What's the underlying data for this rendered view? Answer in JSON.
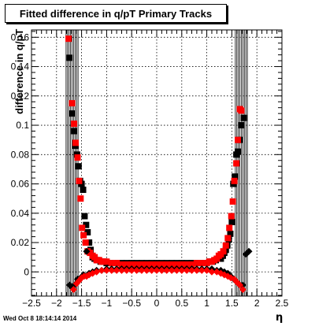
{
  "footer": {
    "timestamp": "Wed Oct  8 18:14:14 2014"
  },
  "chart_data": {
    "type": "scatter",
    "title": "Fitted difference in q/pT  Primary Tracks",
    "xlabel": "η",
    "ylabel": "difference in q/pT",
    "xlim": [
      -2.5,
      2.5
    ],
    "ylim": [
      -0.0165,
      0.165
    ],
    "grid": true,
    "x_ticks": [
      -2.5,
      -2,
      -1.5,
      -1,
      -0.5,
      0,
      0.5,
      1,
      1.5,
      2,
      2.5
    ],
    "x_tick_labels": [
      "−2.5",
      "−2",
      "−1.5",
      "−1",
      "−0.5",
      "0",
      "0.5",
      "1",
      "1.5",
      "2",
      "2.5"
    ],
    "y_ticks": [
      0,
      0.02,
      0.04,
      0.06,
      0.08,
      0.1,
      0.12,
      0.14,
      0.16
    ],
    "y_tick_labels": [
      "0",
      "0.02",
      "0.04",
      "0.06",
      "0.08",
      "0.1",
      "0.12",
      "0.14",
      "0.16"
    ],
    "colors": {
      "series_black": "#000000",
      "series_red": "#ff0000",
      "frame": "#000000"
    },
    "series": [
      {
        "color": "#000000",
        "marker": "square",
        "points": [
          [
            -1.74,
            0.146
          ],
          [
            -1.69,
            0.108
          ],
          [
            -1.65,
            0.096
          ],
          [
            -1.62,
            0.086
          ],
          [
            -1.59,
            0.08
          ],
          [
            -1.56,
            0.072
          ],
          [
            -1.53,
            0.062
          ],
          [
            -1.5,
            0.06
          ],
          [
            -1.47,
            0.056
          ],
          [
            -1.44,
            0.038
          ],
          [
            -1.41,
            0.032
          ],
          [
            -1.38,
            0.027
          ],
          [
            -1.35,
            0.02
          ],
          [
            -1.32,
            0.015
          ],
          [
            -1.28,
            0.01
          ],
          [
            -1.24,
            0.009
          ],
          [
            -1.18,
            0.008
          ],
          [
            -1.12,
            0.007
          ],
          [
            -1.06,
            0.007
          ],
          [
            -1.0,
            0.006
          ],
          [
            -0.9,
            0.006
          ],
          [
            -0.8,
            0.006
          ],
          [
            -0.7,
            0.006
          ],
          [
            -0.6,
            0.006
          ],
          [
            -0.5,
            0.006
          ],
          [
            -0.4,
            0.006
          ],
          [
            -0.3,
            0.006
          ],
          [
            -0.2,
            0.006
          ],
          [
            -0.1,
            0.006
          ],
          [
            0.0,
            0.006
          ],
          [
            0.1,
            0.006
          ],
          [
            0.2,
            0.006
          ],
          [
            0.3,
            0.006
          ],
          [
            0.4,
            0.006
          ],
          [
            0.5,
            0.006
          ],
          [
            0.6,
            0.006
          ],
          [
            0.7,
            0.006
          ],
          [
            0.8,
            0.006
          ],
          [
            0.9,
            0.006
          ],
          [
            1.0,
            0.006
          ],
          [
            1.06,
            0.007
          ],
          [
            1.12,
            0.007
          ],
          [
            1.18,
            0.008
          ],
          [
            1.24,
            0.009
          ],
          [
            1.28,
            0.009
          ],
          [
            1.32,
            0.011
          ],
          [
            1.35,
            0.013
          ],
          [
            1.38,
            0.015
          ],
          [
            1.41,
            0.018
          ],
          [
            1.44,
            0.022
          ],
          [
            1.47,
            0.026
          ],
          [
            1.5,
            0.034
          ],
          [
            1.53,
            0.06
          ],
          [
            1.56,
            0.065
          ],
          [
            1.59,
            0.08
          ],
          [
            1.62,
            0.082
          ],
          [
            1.65,
            0.09
          ],
          [
            1.69,
            0.1
          ],
          [
            1.74,
            0.105
          ]
        ]
      },
      {
        "color": "#ff0000",
        "marker": "square",
        "points": [
          [
            -1.76,
            0.159
          ],
          [
            -1.69,
            0.115
          ],
          [
            -1.65,
            0.101
          ],
          [
            -1.62,
            0.088
          ],
          [
            -1.58,
            0.078
          ],
          [
            -1.55,
            0.062
          ],
          [
            -1.52,
            0.05
          ],
          [
            -1.49,
            0.03
          ],
          [
            -1.46,
            0.025
          ],
          [
            -1.42,
            0.02
          ],
          [
            -1.38,
            0.014
          ],
          [
            -1.33,
            0.013
          ],
          [
            -1.28,
            0.011
          ],
          [
            -1.24,
            0.01
          ],
          [
            -1.2,
            0.008
          ],
          [
            -1.15,
            0.008
          ],
          [
            -1.1,
            0.007
          ],
          [
            -1.05,
            0.007
          ],
          [
            -1.0,
            0.007
          ],
          [
            -0.9,
            0.006
          ],
          [
            -0.8,
            0.006
          ],
          [
            -0.7,
            0.005
          ],
          [
            -0.6,
            0.005
          ],
          [
            -0.5,
            0.005
          ],
          [
            -0.4,
            0.005
          ],
          [
            -0.3,
            0.005
          ],
          [
            -0.2,
            0.005
          ],
          [
            -0.1,
            0.005
          ],
          [
            0.0,
            0.005
          ],
          [
            0.1,
            0.005
          ],
          [
            0.2,
            0.005
          ],
          [
            0.3,
            0.005
          ],
          [
            0.4,
            0.005
          ],
          [
            0.5,
            0.005
          ],
          [
            0.6,
            0.005
          ],
          [
            0.7,
            0.005
          ],
          [
            0.8,
            0.006
          ],
          [
            0.9,
            0.006
          ],
          [
            1.0,
            0.006
          ],
          [
            1.05,
            0.007
          ],
          [
            1.1,
            0.007
          ],
          [
            1.15,
            0.008
          ],
          [
            1.2,
            0.009
          ],
          [
            1.24,
            0.011
          ],
          [
            1.28,
            0.012
          ],
          [
            1.33,
            0.014
          ],
          [
            1.38,
            0.018
          ],
          [
            1.42,
            0.023
          ],
          [
            1.45,
            0.03
          ],
          [
            1.49,
            0.038
          ],
          [
            1.52,
            0.048
          ],
          [
            1.55,
            0.062
          ],
          [
            1.59,
            0.074
          ],
          [
            1.62,
            0.09
          ],
          [
            1.66,
            0.111
          ],
          [
            1.69,
            0.11
          ]
        ]
      },
      {
        "color": "#000000",
        "marker": "diamond",
        "points": [
          [
            -1.74,
            -0.009
          ],
          [
            -1.68,
            -0.011
          ],
          [
            -1.64,
            -0.009
          ],
          [
            -1.58,
            -0.005
          ],
          [
            -1.52,
            -0.004
          ],
          [
            -1.46,
            -0.002
          ],
          [
            -1.4,
            0.014
          ],
          [
            -1.35,
            -0.001
          ],
          [
            -1.28,
            0.0
          ],
          [
            -1.2,
            0.001
          ],
          [
            -1.1,
            0.001
          ],
          [
            -1.0,
            0.002
          ],
          [
            -0.9,
            0.002
          ],
          [
            -0.8,
            0.002
          ],
          [
            -0.7,
            0.002
          ],
          [
            -0.6,
            0.002
          ],
          [
            -0.5,
            0.002
          ],
          [
            -0.4,
            0.002
          ],
          [
            -0.3,
            0.002
          ],
          [
            -0.2,
            0.002
          ],
          [
            -0.1,
            0.002
          ],
          [
            0.0,
            0.002
          ],
          [
            0.1,
            0.002
          ],
          [
            0.2,
            0.002
          ],
          [
            0.3,
            0.002
          ],
          [
            0.4,
            0.002
          ],
          [
            0.5,
            0.002
          ],
          [
            0.6,
            0.002
          ],
          [
            0.7,
            0.002
          ],
          [
            0.8,
            0.002
          ],
          [
            0.9,
            0.002
          ],
          [
            1.0,
            0.002
          ],
          [
            1.1,
            0.002
          ],
          [
            1.2,
            0.001
          ],
          [
            1.28,
            0.001
          ],
          [
            1.35,
            0.0
          ],
          [
            1.42,
            -0.001
          ],
          [
            1.48,
            -0.003
          ],
          [
            1.54,
            -0.005
          ],
          [
            1.6,
            -0.007
          ],
          [
            1.66,
            -0.009
          ],
          [
            1.72,
            -0.009
          ],
          [
            1.78,
            0.012
          ],
          [
            1.84,
            0.014
          ]
        ]
      },
      {
        "color": "#ff0000",
        "marker": "diamond",
        "points": [
          [
            -1.66,
            -0.012
          ],
          [
            -1.6,
            -0.008
          ],
          [
            -1.55,
            -0.006
          ],
          [
            -1.5,
            -0.004
          ],
          [
            -1.45,
            -0.003
          ],
          [
            -1.4,
            -0.003
          ],
          [
            -1.35,
            -0.002
          ],
          [
            -1.28,
            -0.001
          ],
          [
            -1.2,
            0.0
          ],
          [
            -1.1,
            0.001
          ],
          [
            -1.0,
            0.001
          ],
          [
            -0.9,
            0.001
          ],
          [
            -0.8,
            0.001
          ],
          [
            -0.7,
            0.001
          ],
          [
            -0.6,
            0.001
          ],
          [
            -0.5,
            0.001
          ],
          [
            -0.4,
            0.001
          ],
          [
            -0.3,
            0.001
          ],
          [
            -0.2,
            0.001
          ],
          [
            -0.1,
            0.001
          ],
          [
            0.0,
            0.001
          ],
          [
            0.1,
            0.001
          ],
          [
            0.2,
            0.001
          ],
          [
            0.3,
            0.001
          ],
          [
            0.4,
            0.001
          ],
          [
            0.5,
            0.001
          ],
          [
            0.6,
            0.001
          ],
          [
            0.7,
            0.001
          ],
          [
            0.8,
            0.001
          ],
          [
            0.9,
            0.001
          ],
          [
            1.0,
            0.001
          ],
          [
            1.1,
            0.0
          ],
          [
            1.2,
            0.0
          ],
          [
            1.28,
            -0.001
          ],
          [
            1.35,
            -0.002
          ],
          [
            1.42,
            -0.003
          ],
          [
            1.48,
            -0.004
          ],
          [
            1.55,
            -0.005
          ],
          [
            1.6,
            -0.007
          ],
          [
            1.66,
            -0.009
          ],
          [
            1.72,
            -0.012
          ]
        ]
      }
    ],
    "error_bar_x": [
      -1.81,
      -1.78,
      -1.75,
      -1.72,
      -1.69,
      -1.66,
      -1.63,
      -1.6,
      -1.57,
      1.57,
      1.6,
      1.63,
      1.66,
      1.69,
      1.72,
      1.75,
      1.78,
      1.81
    ]
  }
}
